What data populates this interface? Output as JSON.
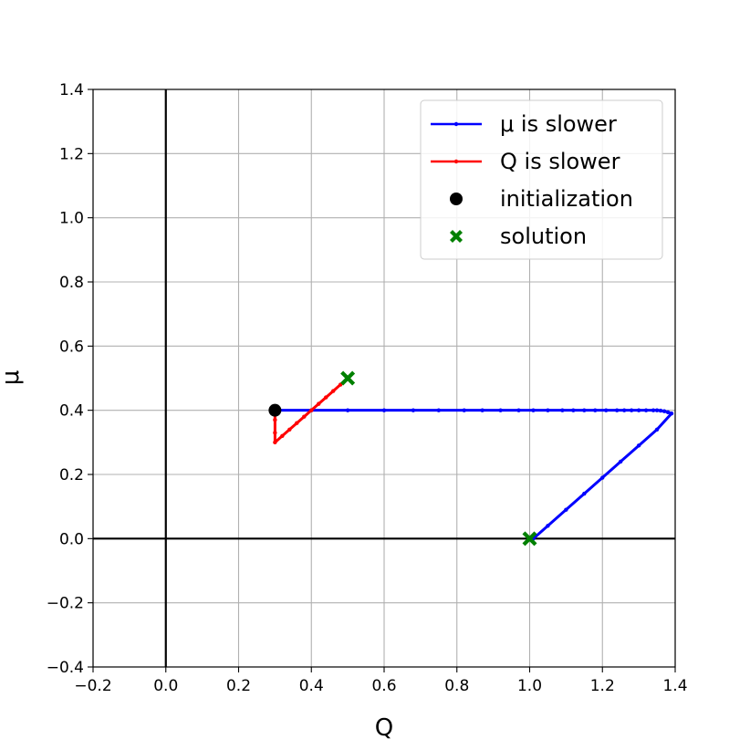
{
  "chart_data": {
    "type": "line",
    "title": "",
    "xlabel": "Q",
    "ylabel": "μ",
    "xlim": [
      -0.2,
      1.4
    ],
    "ylim": [
      -0.4,
      1.4
    ],
    "xticks": [
      -0.2,
      0.0,
      0.2,
      0.4,
      0.6,
      0.8,
      1.0,
      1.2,
      1.4
    ],
    "yticks": [
      -0.4,
      -0.2,
      0.0,
      0.2,
      0.4,
      0.6,
      0.8,
      1.0,
      1.2,
      1.4
    ],
    "xtick_labels": [
      "−0.2",
      "0.0",
      "0.2",
      "0.4",
      "0.6",
      "0.8",
      "1.0",
      "1.2",
      "1.4"
    ],
    "ytick_labels": [
      "−0.4",
      "−0.2",
      "0.0",
      "0.2",
      "0.4",
      "0.6",
      "0.8",
      "1.0",
      "1.2",
      "1.4"
    ],
    "grid": true,
    "legend_position": "top-right",
    "series": [
      {
        "name": "μ is slower",
        "color": "#0000ff",
        "marker": "dot",
        "x": [
          0.3,
          0.4,
          0.5,
          0.6,
          0.68,
          0.75,
          0.82,
          0.87,
          0.92,
          0.97,
          1.01,
          1.05,
          1.09,
          1.12,
          1.15,
          1.18,
          1.21,
          1.24,
          1.26,
          1.28,
          1.3,
          1.32,
          1.34,
          1.35,
          1.36,
          1.37,
          1.38,
          1.39,
          1.35,
          1.3,
          1.25,
          1.2,
          1.15,
          1.1,
          1.05,
          1.01
        ],
        "y": [
          0.4,
          0.4,
          0.4,
          0.4,
          0.4,
          0.4,
          0.4,
          0.4,
          0.4,
          0.4,
          0.4,
          0.4,
          0.4,
          0.4,
          0.4,
          0.4,
          0.4,
          0.4,
          0.4,
          0.4,
          0.4,
          0.4,
          0.4,
          0.4,
          0.399,
          0.397,
          0.394,
          0.39,
          0.34,
          0.29,
          0.24,
          0.19,
          0.14,
          0.09,
          0.04,
          0.0
        ]
      },
      {
        "name": "Q is slower",
        "color": "#ff0000",
        "marker": "dot",
        "x": [
          0.3,
          0.3,
          0.3,
          0.3,
          0.32,
          0.34,
          0.36,
          0.38,
          0.4,
          0.42,
          0.44,
          0.46,
          0.48,
          0.5
        ],
        "y": [
          0.4,
          0.37,
          0.33,
          0.3,
          0.32,
          0.34,
          0.36,
          0.38,
          0.4,
          0.42,
          0.44,
          0.46,
          0.48,
          0.5
        ]
      }
    ],
    "initialization": {
      "name": "initialization",
      "color": "#000000",
      "x": 0.3,
      "y": 0.4
    },
    "solutions": {
      "name": "solution",
      "color": "#008000",
      "points": [
        {
          "x": 0.5,
          "y": 0.5
        },
        {
          "x": 1.0,
          "y": 0.0
        }
      ]
    }
  }
}
